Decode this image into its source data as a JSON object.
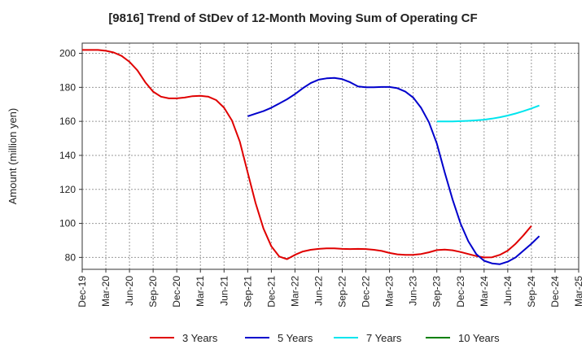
{
  "chart_data": {
    "type": "line",
    "title": "[9816]  Trend of StDev of 12-Month Moving Sum of Operating CF",
    "xlabel": "",
    "ylabel": "Amount (million yen)",
    "ylim": [
      73,
      206
    ],
    "yticks": [
      80,
      100,
      120,
      140,
      160,
      180,
      200
    ],
    "grid": true,
    "legend_position": "bottom",
    "x_ticks": [
      "Dec-19",
      "Mar-20",
      "Jun-20",
      "Sep-20",
      "Dec-20",
      "Mar-21",
      "Jun-21",
      "Sep-21",
      "Dec-21",
      "Mar-22",
      "Jun-22",
      "Sep-22",
      "Dec-22",
      "Mar-23",
      "Jun-23",
      "Sep-23",
      "Dec-23",
      "Mar-24",
      "Jun-24",
      "Sep-24",
      "Dec-24",
      "Mar-25"
    ],
    "series": [
      {
        "name": "3 Years",
        "color": "#e00000",
        "start_index": 0,
        "values": [
          202,
          202,
          202,
          201.5,
          200.5,
          198.5,
          195,
          190,
          183,
          177.5,
          174.5,
          173.5,
          173.5,
          174,
          174.8,
          175,
          174.5,
          172.5,
          168,
          160.5,
          148,
          130,
          112,
          97,
          86.5,
          80.5,
          79,
          81.5,
          83.5,
          84.5,
          85,
          85.3,
          85.3,
          85,
          84.9,
          85,
          84.9,
          84.5,
          83.8,
          82.6,
          81.8,
          81.5,
          81.5,
          82,
          83,
          84.3,
          84.6,
          84.2,
          83.2,
          82,
          80.8,
          80,
          80.1,
          81.5,
          84,
          88,
          93,
          98.5
        ]
      },
      {
        "name": "5 Years",
        "color": "#0000cc",
        "start_index": 21,
        "values": [
          163,
          164.5,
          166,
          168,
          170.5,
          173,
          176,
          179.5,
          182.5,
          184.5,
          185.3,
          185.5,
          184.8,
          183,
          180.5,
          180,
          180,
          180.2,
          180.2,
          179.5,
          177.5,
          174,
          168,
          159.5,
          147,
          130,
          114,
          100,
          89.5,
          82,
          78,
          76.5,
          76,
          77.5,
          80,
          84,
          88,
          92.5
        ]
      },
      {
        "name": "7 Years",
        "color": "#00e5ee",
        "start_index": 45,
        "values": [
          160,
          160,
          160,
          160.1,
          160.3,
          160.6,
          161,
          161.6,
          162.4,
          163.4,
          164.6,
          166,
          167.6,
          169.3
        ]
      },
      {
        "name": "10 Years",
        "color": "#008000",
        "start_index": 0,
        "values": []
      }
    ]
  }
}
